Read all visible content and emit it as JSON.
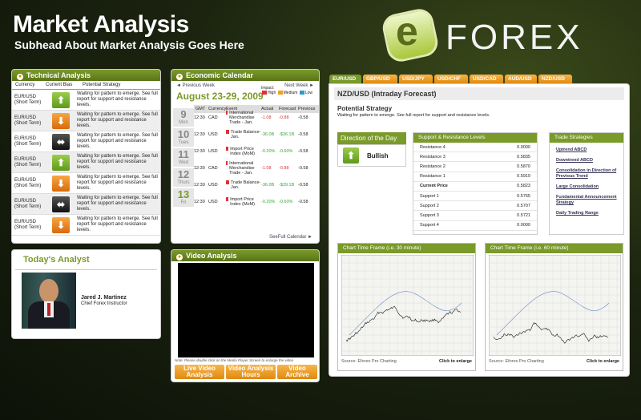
{
  "header": {
    "title": "Market Analysis",
    "subtitle": "Subhead About Market Analysis Goes Here",
    "logo_letter": "e",
    "logo_word": "FOREX"
  },
  "technical": {
    "title": "Technical Analysis",
    "col_currency": "Currency",
    "col_bias": "Current Bias",
    "col_strategy": "Potential Strategy",
    "rows": [
      {
        "pair": "EUR/USD",
        "term": "(Short Term)",
        "bias": "up",
        "strategy": "Waiting for pattern to emerge. See full report for support and resistance levels."
      },
      {
        "pair": "EUR/USD",
        "term": "(Short Term)",
        "bias": "down",
        "strategy": "Waiting for pattern to emerge. See full report for support and resistance levels."
      },
      {
        "pair": "EUR/USD",
        "term": "(Short Term)",
        "bias": "side",
        "strategy": "Waiting for pattern to emerge. See full report for support and resistance levels."
      },
      {
        "pair": "EUR/USD",
        "term": "(Short Term)",
        "bias": "up",
        "strategy": "Waiting for pattern to emerge. See full report for support and resistance levels."
      },
      {
        "pair": "EUR/USD",
        "term": "(Short Term)",
        "bias": "down",
        "strategy": "Waiting for pattern to emerge. See full report for support and resistance levels."
      },
      {
        "pair": "EUR/USD",
        "term": "(Short Term)",
        "bias": "side",
        "strategy": "Waiting for pattern to emerge. See full report for support and resistance levels."
      },
      {
        "pair": "EUR/USD",
        "term": "(Short Term)",
        "bias": "down",
        "strategy": "Waiting for pattern to emerge. See full report for support and resistance levels."
      }
    ]
  },
  "analyst": {
    "title": "Today's Analyst",
    "name": "Jared J. Martinez",
    "role": "Chief Forex Instructor"
  },
  "calendar": {
    "title": "Economic Calendar",
    "prev": "◄ Previous Week",
    "next": "Next Week ►",
    "date": "August 23-29, 2009",
    "impact": "Impact:",
    "high": "High",
    "medium": "Medium",
    "low": "Low",
    "cols": [
      "GMT",
      "Currency",
      "Event",
      "Actual",
      "Forecast",
      "Previous"
    ],
    "days": [
      {
        "n": "9",
        "d": "Mon"
      },
      {
        "n": "10",
        "d": "Tues"
      },
      {
        "n": "11",
        "d": "Wed"
      },
      {
        "n": "12",
        "d": "Thurs"
      },
      {
        "n": "13",
        "d": "Fri"
      }
    ],
    "rows": [
      {
        "gmt": "12:30",
        "cur": "CAD",
        "event": "International Merchandise Trade - Jan.",
        "actual": "-1.08",
        "forecast": "-0.88",
        "previous": "-0.58",
        "ac": "red"
      },
      {
        "gmt": "12:30",
        "cur": "USD",
        "event": "Trade Balance-Jan.",
        "actual": "-36.0B",
        "forecast": "-$36.1B",
        "previous": "-0.58",
        "ac": "green"
      },
      {
        "gmt": "12:30",
        "cur": "USD",
        "event": "Import Price Index (MoM)",
        "actual": "-0.20%",
        "forecast": "-0.60%",
        "previous": "-0.58",
        "ac": "green"
      },
      {
        "gmt": "12:30",
        "cur": "CAD",
        "event": "International Merchandise Trade - Jan.",
        "actual": "-1.08",
        "forecast": "-0.88",
        "previous": "-0.58",
        "ac": "red"
      },
      {
        "gmt": "12:30",
        "cur": "USD",
        "event": "Trade Balance-Jan.",
        "actual": "-36.0B",
        "forecast": "-$39.1B",
        "previous": "-0.58",
        "ac": "green"
      },
      {
        "gmt": "12:30",
        "cur": "USD",
        "event": "Import Price Index (MoM)",
        "actual": "-0.20%",
        "forecast": "-0.60%",
        "previous": "-0.58",
        "ac": "green"
      }
    ],
    "see_full": "SeeFull Calendar ►"
  },
  "video": {
    "title": "Video Analysis",
    "note": "Note: Please double click on the Media Player Screen to enlarge the video",
    "btn1": "Live Video Analysis",
    "btn2": "Video Analysis Hours",
    "btn3": "Video Archive"
  },
  "tabs": [
    "EUR/USD",
    "GBP/USD",
    "USD/JPY",
    "USD/CHF",
    "USD/CAD",
    "AUD/USD",
    "NZD/USD"
  ],
  "forecast": {
    "title": "NZD/USD (Intraday Forecast)",
    "strategy_title": "Potential Strategy",
    "strategy_text": "Waiting for pattern to emerge. See full report for support and resistance levels.",
    "direction_title": "Direction of the Day",
    "direction": "Bullish",
    "sr_title": "Support & Resistance Levels",
    "levels": [
      {
        "k": "Resistance 4",
        "v": "0.0000"
      },
      {
        "k": "Resistance 3",
        "v": "0.5835"
      },
      {
        "k": "Resistance 2",
        "v": "0.5870"
      },
      {
        "k": "Resistance 1",
        "v": "0.5919"
      },
      {
        "k": "Current Price",
        "v": "0.5823"
      },
      {
        "k": "Support 1",
        "v": "0.5765"
      },
      {
        "k": "Support 2",
        "v": "0.5707"
      },
      {
        "k": "Support 3",
        "v": "0.5721"
      },
      {
        "k": "Support 4",
        "v": "0.0000"
      }
    ],
    "ts_title": "Trade Strategies",
    "strategies": [
      "Uptrend ABCD",
      "Downtrend ABCD",
      "Consolidation in Direction of Previous Trend",
      "Large Consolidation",
      "Fundamental Announcement Strategy",
      "Daily Trading Range"
    ],
    "chart1_title": "Chart Time Frame (i.e. 30 minute)",
    "chart2_title": "Chart Time Frame (i.e. 60 minute)",
    "source": "Source: Eforex Pro Charting",
    "enlarge": "Click to enlarge"
  },
  "colors": {
    "accent": "#7a9a2a",
    "orange": "#e08a10"
  }
}
